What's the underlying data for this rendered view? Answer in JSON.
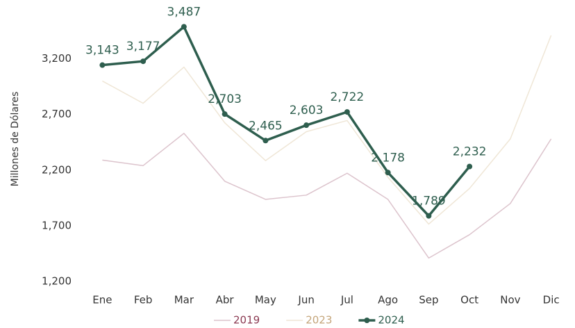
{
  "chart_data": {
    "type": "line",
    "y_label": "Millones de Dólares",
    "categories": [
      "Ene",
      "Feb",
      "Mar",
      "Abr",
      "May",
      "Jun",
      "Jul",
      "Ago",
      "Sep",
      "Oct",
      "Nov",
      "Dic"
    ],
    "series": [
      {
        "name": "2019",
        "color": "#dcc3cc",
        "legend_color": "#8b3a52",
        "width": 1.5,
        "markers": false,
        "values": [
          2290,
          2240,
          2530,
          2100,
          1937,
          1975,
          2172,
          1937,
          1410,
          1620,
          1900,
          2480
        ]
      },
      {
        "name": "2023",
        "color": "#efe6d6",
        "legend_color": "#c4a57a",
        "width": 1.5,
        "markers": false,
        "values": [
          3000,
          2800,
          3125,
          2625,
          2285,
          2545,
          2645,
          2135,
          1715,
          2035,
          2480,
          3410
        ]
      },
      {
        "name": "2024",
        "color": "#2e5e4e",
        "legend_color": "#2e5e4e",
        "width": 3.5,
        "markers": true,
        "values": [
          3143,
          3177,
          3487,
          2703,
          2465,
          2603,
          2722,
          2178,
          1789,
          2232,
          null,
          null
        ],
        "value_labels": [
          "3,143",
          "3,177",
          "3,487",
          "2,703",
          "2,465",
          "2,603",
          "2,722",
          "2,178",
          "1,789",
          "2,232",
          null,
          null
        ]
      }
    ],
    "ylim": [
      1200,
      3640
    ],
    "yticks": [
      {
        "value": 1200,
        "label": "1,200"
      },
      {
        "value": 1700,
        "label": "1,700"
      },
      {
        "value": 2200,
        "label": "2,200"
      },
      {
        "value": 2700,
        "label": "2,700"
      },
      {
        "value": 3200,
        "label": "3,200"
      }
    ],
    "grid": false,
    "legend": "bottom"
  }
}
